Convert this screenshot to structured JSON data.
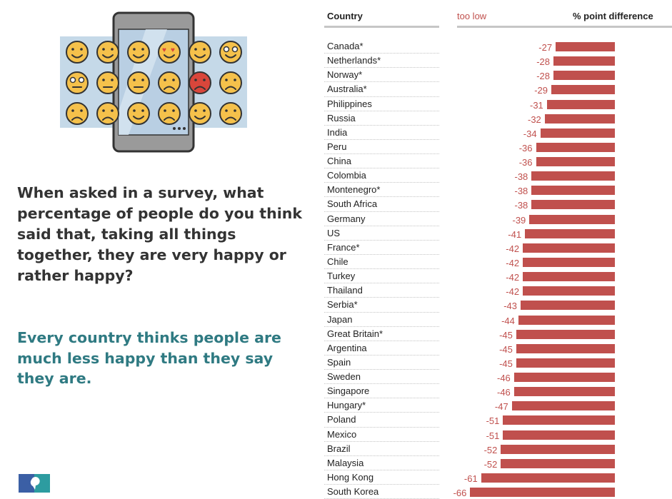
{
  "left_panel": {
    "question": "When asked in a survey, what percentage of people do you think said that, taking all things together, they are very happy or rather happy?",
    "headline": "Every country thinks people are much less happy than they say they are.",
    "emoji_row_1": [
      "smile",
      "grin",
      "wink",
      "heart-eyes",
      "kiss",
      "crazy"
    ],
    "emoji_row_2": [
      "shocked",
      "neutral",
      "flat",
      "worried",
      "angry",
      "sad"
    ],
    "emoji_row_3": [
      "frown",
      "crying",
      "laughing",
      "sobbing",
      "grimace",
      "disappointed"
    ],
    "colors": {
      "question": "#333333",
      "headline": "#2f7a82",
      "emoji": "#f5c14b",
      "screen": "#c5d9e8",
      "phone": "#9a9a9a"
    }
  },
  "chart_data": {
    "type": "bar",
    "orientation": "horizontal",
    "column_headers": {
      "country": "Country",
      "direction": "too low",
      "value": "% point difference"
    },
    "categories": [
      "Canada*",
      "Netherlands*",
      "Norway*",
      "Australia*",
      "Philippines",
      "Russia",
      "India",
      "Peru",
      "China",
      "Colombia",
      "Montenegro*",
      "South Africa",
      "Germany",
      "US",
      "France*",
      "Chile",
      "Turkey",
      "Thailand",
      "Serbia*",
      "Japan",
      "Great Britain*",
      "Argentina",
      "Spain",
      "Sweden",
      "Singapore",
      "Hungary*",
      "Poland",
      "Mexico",
      "Brazil",
      "Malaysia",
      "Hong Kong",
      "South Korea"
    ],
    "values": [
      -27,
      -28,
      -28,
      -29,
      -31,
      -32,
      -34,
      -36,
      -36,
      -38,
      -38,
      -38,
      -39,
      -41,
      -42,
      -42,
      -42,
      -42,
      -43,
      -44,
      -45,
      -45,
      -45,
      -46,
      -46,
      -47,
      -51,
      -51,
      -52,
      -52,
      -61,
      -66
    ],
    "value_labels": [
      "-27",
      "-28",
      "-28",
      "-29",
      "-31",
      "-32",
      "-34",
      "-36",
      "-36",
      "-38",
      "-38",
      "-38",
      "-39",
      "-41",
      "-42",
      "-42",
      "-42",
      "-42",
      "-43",
      "-44",
      "-45",
      "-45",
      "-45",
      "-46",
      "-46",
      "-47",
      "-51",
      "-51",
      "-52",
      "-52",
      "-61",
      "-66"
    ],
    "bar_color": "#c0504d",
    "label_color": "#c0504d"
  }
}
